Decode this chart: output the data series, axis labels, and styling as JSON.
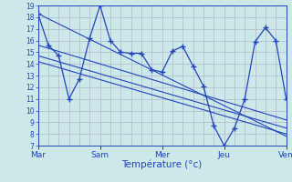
{
  "bg_color": "#cde8e8",
  "grid_color": "#b0b8cc",
  "line_color": "#2244bb",
  "xlabel": "Température (°c)",
  "ylim": [
    7,
    19
  ],
  "xlim": [
    0,
    24
  ],
  "yticks": [
    7,
    8,
    9,
    10,
    11,
    12,
    13,
    14,
    15,
    16,
    17,
    18,
    19
  ],
  "day_labels": [
    "Mar",
    "Sam",
    "Mer",
    "Jeu",
    "Ven"
  ],
  "day_positions": [
    0,
    6,
    12,
    18,
    24
  ],
  "main_x": [
    0,
    1,
    2,
    3,
    4,
    5,
    6,
    7,
    8,
    9,
    10,
    11,
    12,
    13,
    14,
    15,
    16,
    17,
    18,
    19,
    20,
    21,
    22,
    23,
    24
  ],
  "main_y": [
    18.3,
    15.6,
    14.7,
    11.0,
    12.7,
    16.2,
    19.0,
    16.0,
    15.0,
    14.9,
    14.9,
    13.5,
    13.3,
    15.1,
    15.5,
    13.8,
    12.1,
    8.7,
    7.0,
    8.5,
    11.0,
    15.9,
    17.1,
    16.0,
    11.0
  ],
  "trend1_x": [
    0,
    24
  ],
  "trend1_y": [
    18.3,
    7.8
  ],
  "trend2_x": [
    0,
    24
  ],
  "trend2_y": [
    15.6,
    9.2
  ],
  "trend3_x": [
    0,
    24
  ],
  "trend3_y": [
    14.7,
    8.5
  ],
  "trend4_x": [
    0,
    24
  ],
  "trend4_y": [
    14.2,
    8.0
  ]
}
